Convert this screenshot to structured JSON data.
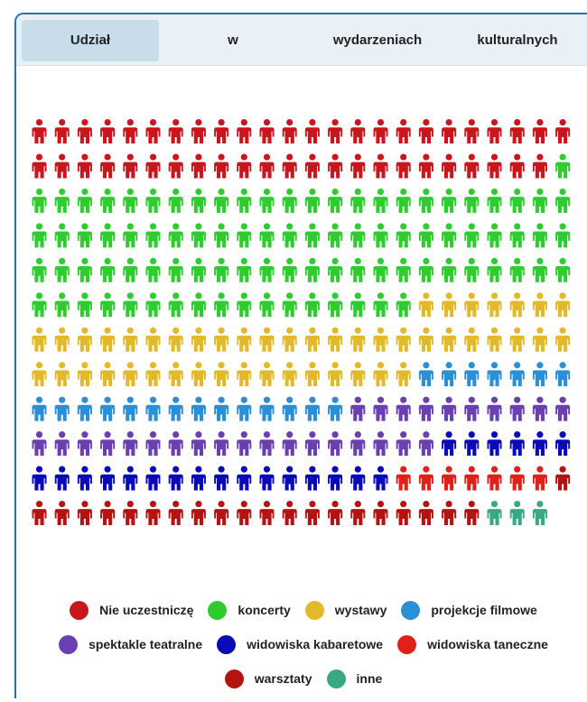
{
  "tabs": [
    {
      "label": "Udział",
      "active": true
    },
    {
      "label": "w",
      "active": false
    },
    {
      "label": "wydarzeniach",
      "active": false
    },
    {
      "label": "kulturalnych",
      "active": false
    }
  ],
  "chart_data": {
    "type": "pictogram",
    "icon": "person-icon",
    "rows": 12,
    "columns": 24,
    "series": [
      {
        "name": "Nie uczestniczę",
        "count": 47,
        "color": "#c8161d"
      },
      {
        "name": "koncerty",
        "count": 90,
        "color": "#2ecc2e"
      },
      {
        "name": "wystawy",
        "count": 48,
        "color": "#e2b92a"
      },
      {
        "name": "projekcje filmowe",
        "count": 21,
        "color": "#2a8fd6"
      },
      {
        "name": "spektakle teatralne",
        "count": 28,
        "color": "#6a3fb0"
      },
      {
        "name": "widowiska kabaretowe",
        "count": 22,
        "color": "#0a0ab8"
      },
      {
        "name": "widowiska taneczne",
        "count": 7,
        "color": "#e0201a"
      },
      {
        "name": "warsztaty",
        "count": 21,
        "color": "#b51212"
      },
      {
        "name": "inne",
        "count": 3,
        "color": "#3aa882"
      }
    ]
  }
}
